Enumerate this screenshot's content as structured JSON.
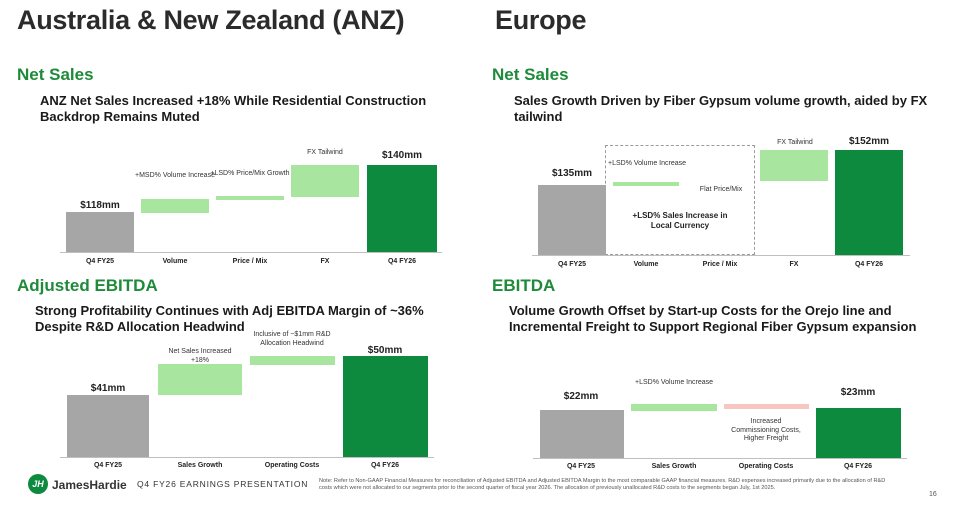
{
  "anz": {
    "title": "Australia & New Zealand (ANZ)",
    "net_sales": {
      "heading": "Net Sales",
      "subtitle": "ANZ Net Sales Increased +18% While Residential Construction Backdrop Remains Muted",
      "start_value": "$118mm",
      "end_value": "$140mm",
      "ann_volume": "+MSD% Volume Increase",
      "ann_price": "+LSD% Price/Mix Growth",
      "ann_fx": "FX Tailwind",
      "categories": [
        "Q4 FY25",
        "Volume",
        "Price / Mix",
        "FX",
        "Q4 FY26"
      ]
    },
    "ebitda": {
      "heading": "Adjusted EBITDA",
      "subtitle": "Strong Profitability Continues with Adj EBITDA Margin of ~36% Despite R&D Allocation Headwind",
      "start_value": "$41mm",
      "end_value": "$50mm",
      "ann_sales": "Net Sales Increased +18%",
      "ann_costs": "Inclusive of ~$1mm R&D Allocation Headwind",
      "categories": [
        "Q4 FY25",
        "Sales Growth",
        "Operating Costs",
        "Q4 FY26"
      ]
    }
  },
  "europe": {
    "title": "Europe",
    "net_sales": {
      "heading": "Net Sales",
      "subtitle": "Sales Growth Driven by Fiber Gypsum volume growth, aided by FX tailwind",
      "start_value": "$135mm",
      "end_value": "$152mm",
      "ann_volume": "+LSD% Volume Increase",
      "ann_price": "Flat Price/Mix",
      "ann_fx": "FX Tailwind",
      "box_text": "+LSD% Sales Increase in Local Currency",
      "categories": [
        "Q4 FY25",
        "Volume",
        "Price / Mix",
        "FX",
        "Q4 FY26"
      ]
    },
    "ebitda": {
      "heading": "EBITDA",
      "subtitle": "Volume Growth Offset by Start-up Costs for the Orejo line and Incremental Freight to Support Regional Fiber Gypsum expansion",
      "start_value": "$22mm",
      "end_value": "$23mm",
      "ann_volume": "+LSD% Volume Increase",
      "ann_costs": "Increased Commissioning Costs, Higher Freight",
      "categories": [
        "Q4 FY25",
        "Sales Growth",
        "Operating Costs",
        "Q4 FY26"
      ]
    }
  },
  "footer": {
    "logo_mark": "JH",
    "logo_text": "JamesHardie",
    "presentation": "Q4 FY26 EARNINGS PRESENTATION",
    "note": "Note: Refer to Non-GAAP Financial Measures for reconciliation of Adjusted EBITDA and Adjusted EBITDA Margin to the most comparable GAAP financial measures. R&D expenses increased primarily due to the allocation of R&D costs which were not allocated to our segments prior to the second quarter of fiscal year 2026. The allocation of previously unallocated R&D costs to the segments began July, 1st 2025.",
    "page_number": "16"
  },
  "colors": {
    "accent_green": "#1e8a3a",
    "bar_dark_green": "#0d8a3e",
    "bar_light_green": "#a8e6a0",
    "bar_gray": "#a6a6a6",
    "bar_pink": "#f7c6c0"
  }
}
